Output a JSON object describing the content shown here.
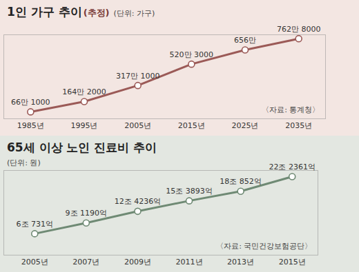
{
  "chart_data": [
    {
      "type": "line",
      "title": "1인 가구 추이",
      "subtitle": "(추정)",
      "unit_label": "(단위: 가구)",
      "source": "〈자료: 통계청〉",
      "x": [
        1985,
        1995,
        2005,
        2015,
        2025,
        2035
      ],
      "values": [
        661000,
        1642000,
        3171000,
        5203000,
        6560000,
        7628000
      ],
      "value_labels": [
        "66만 1000",
        "164만 2000",
        "317만 1000",
        "520만 3000",
        "656만",
        "762만 8000"
      ],
      "color": "#9b5a57",
      "marker": "circle",
      "xlim": [
        1980,
        2040
      ],
      "xticks": [
        {
          "value": 1985,
          "label": "1985년"
        },
        {
          "value": 1995,
          "label": "1995년"
        },
        {
          "value": 2005,
          "label": "2005년"
        },
        {
          "value": 2015,
          "label": "2015년"
        },
        {
          "value": 2025,
          "label": "2025년"
        },
        {
          "value": 2035,
          "label": "2035년"
        }
      ],
      "ylim": [
        0,
        8000000
      ],
      "yticks": [],
      "grid": false,
      "data_labels": true,
      "tick_labels": "x"
    },
    {
      "type": "line",
      "title": "65세 이상 노인 진료비 추이",
      "unit_label": "(단위: 원)",
      "source": "〈자료: 국민건강보험공단〉",
      "x": [
        2005,
        2007,
        2009,
        2011,
        2013,
        2015
      ],
      "values": [
        6073100000000,
        9119000000000,
        12423600000000,
        15389300000000,
        18085200000000,
        22236100000000
      ],
      "value_labels": [
        "6조 731억",
        "9조 1190억",
        "12조 4236억",
        "15조 3893억",
        "18조 852억",
        "22조 2361억"
      ],
      "color": "#6f8a74",
      "marker": "circle",
      "xlim": [
        2003.8,
        2016
      ],
      "xticks": [
        {
          "value": 2005,
          "label": "2005년"
        },
        {
          "value": 2007,
          "label": "2007년"
        },
        {
          "value": 2009,
          "label": "2009년"
        },
        {
          "value": 2011,
          "label": "2011년"
        },
        {
          "value": 2013,
          "label": "2013년"
        },
        {
          "value": 2015,
          "label": "2015년"
        }
      ],
      "ylim": [
        0,
        24000000000000
      ],
      "yticks": [],
      "grid": false,
      "data_labels": true,
      "tick_labels": "x"
    }
  ]
}
